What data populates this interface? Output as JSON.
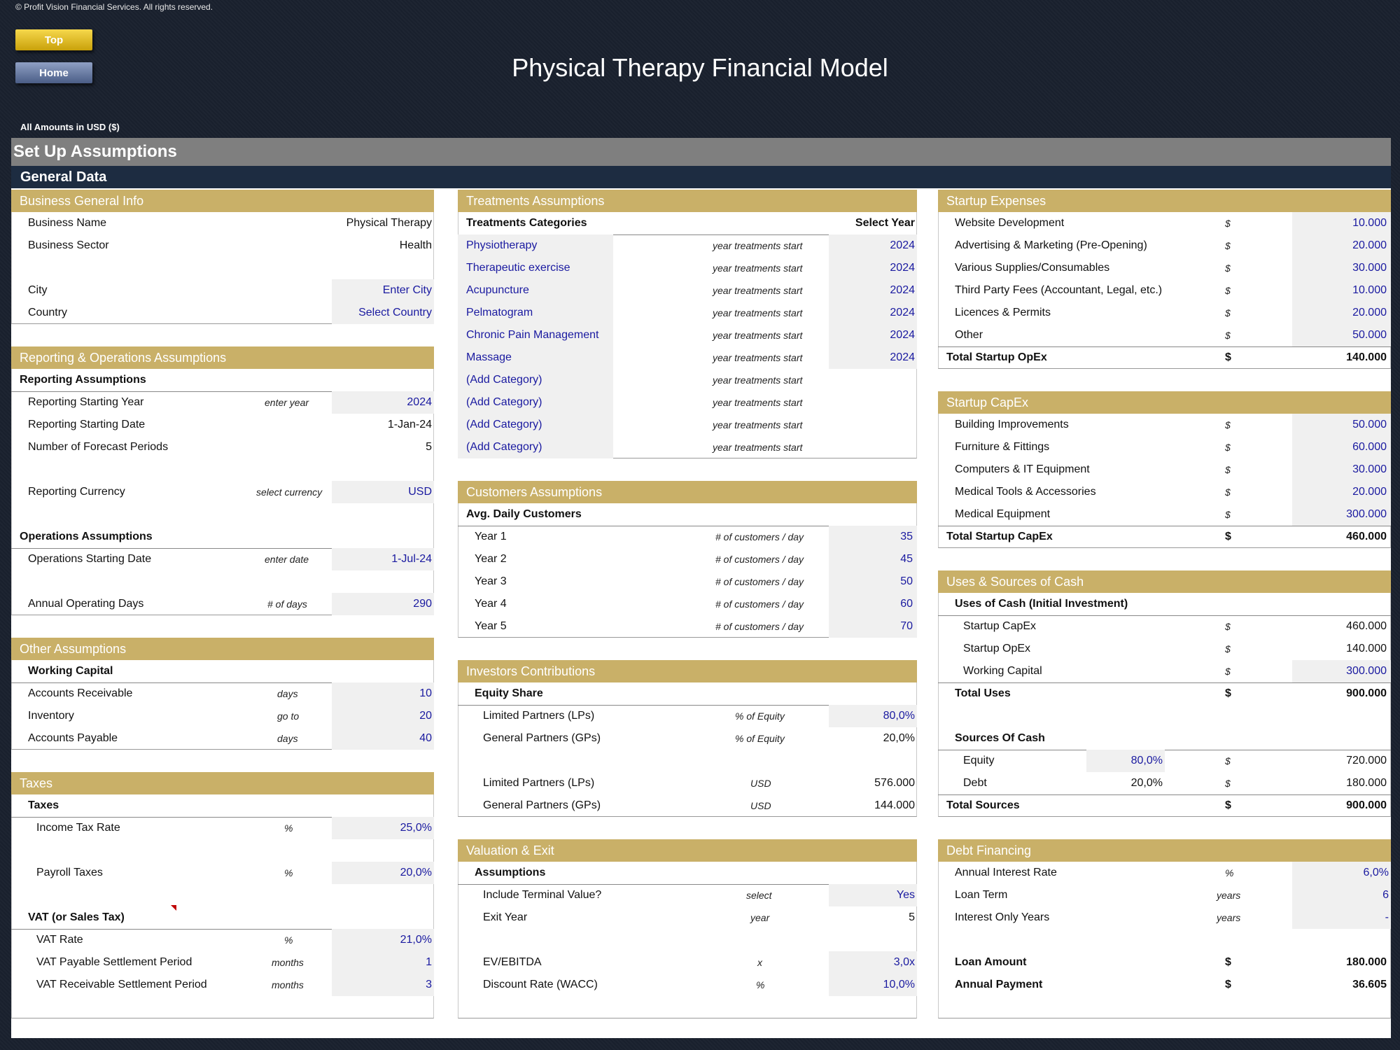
{
  "copyright": "© Profit Vision Financial Services. All rights reserved.",
  "nav": {
    "top": "Top",
    "home": "Home"
  },
  "title": "Physical Therapy Financial Model",
  "currency_note": "All Amounts in  USD ($)",
  "section": "Set Up Assumptions",
  "subsection": "General Data",
  "business": {
    "header": "Business General Info",
    "name_label": "Business Name",
    "name_value": "Physical Therapy",
    "sector_label": "Business Sector",
    "sector_value": "Health",
    "city_label": "City",
    "city_value": "Enter City",
    "country_label": "Country",
    "country_value": "Select Country"
  },
  "reporting": {
    "header": "Reporting & Operations Assumptions",
    "sub": "Reporting Assumptions",
    "start_year_label": "Reporting Starting Year",
    "start_year_unit": "enter year",
    "start_year_value": "2024",
    "start_date_label": "Reporting Starting Date",
    "start_date_value": "1-Jan-24",
    "periods_label": "Number of Forecast Periods",
    "periods_value": "5",
    "currency_label": "Reporting Currency",
    "currency_unit": "select currency",
    "currency_value": "USD",
    "ops_sub": "Operations Assumptions",
    "ops_date_label": "Operations Starting Date",
    "ops_date_unit": "enter date",
    "ops_date_value": "1-Jul-24",
    "days_label": "Annual Operating Days",
    "days_unit": "# of days",
    "days_value": "290"
  },
  "other": {
    "header": "Other Assumptions",
    "sub": "Working Capital",
    "ar_label": "Accounts Receivable",
    "ar_unit": "days",
    "ar_value": "10",
    "inv_label": "Inventory",
    "inv_unit": "go to",
    "inv_value": "20",
    "ap_label": "Accounts Payable",
    "ap_unit": "days",
    "ap_value": "40"
  },
  "taxes": {
    "header": "Taxes",
    "sub": "Taxes",
    "income_label": "Income Tax Rate",
    "income_unit": "%",
    "income_value": "25,0%",
    "payroll_label": "Payroll Taxes",
    "payroll_unit": "%",
    "payroll_value": "20,0%",
    "vat_sub": "VAT (or Sales Tax)",
    "vat_label": "VAT Rate",
    "vat_unit": "%",
    "vat_value": "21,0%",
    "vat_pay_label": "VAT Payable Settlement Period",
    "vat_pay_unit": "months",
    "vat_pay_value": "1",
    "vat_rec_label": "VAT Receivable Settlement Period",
    "vat_rec_unit": "months",
    "vat_rec_value": "3"
  },
  "treatments": {
    "header": "Treatments Assumptions",
    "col1": "Treatments Categories",
    "col2": "Select Year",
    "unit": "year treatments start",
    "items": [
      {
        "name": "Physiotherapy",
        "year": "2024"
      },
      {
        "name": "Therapeutic exercise",
        "year": "2024"
      },
      {
        "name": "Acupuncture",
        "year": "2024"
      },
      {
        "name": "Pelmatogram",
        "year": "2024"
      },
      {
        "name": "Chronic Pain Management",
        "year": "2024"
      },
      {
        "name": "Massage",
        "year": "2024"
      },
      {
        "name": "(Add Category)",
        "year": ""
      },
      {
        "name": "(Add Category)",
        "year": ""
      },
      {
        "name": "(Add Category)",
        "year": ""
      },
      {
        "name": "(Add Category)",
        "year": ""
      }
    ]
  },
  "customers": {
    "header": "Customers Assumptions",
    "sub": "Avg. Daily Customers",
    "unit": "# of customers / day",
    "items": [
      {
        "label": "Year 1",
        "value": "35"
      },
      {
        "label": "Year 2",
        "value": "45"
      },
      {
        "label": "Year 3",
        "value": "50"
      },
      {
        "label": "Year 4",
        "value": "60"
      },
      {
        "label": "Year 5",
        "value": "70"
      }
    ]
  },
  "investors": {
    "header": "Investors Contributions",
    "sub": "Equity Share",
    "lp_label": "Limited Partners (LPs)",
    "lp_unit": "% of Equity",
    "lp_value": "80,0%",
    "gp_label": "General Partners (GPs)",
    "gp_unit": "% of Equity",
    "gp_value": "20,0%",
    "lp_usd_label": "Limited Partners (LPs)",
    "lp_usd_unit": "USD",
    "lp_usd_value": "576.000",
    "gp_usd_label": "General Partners (GPs)",
    "gp_usd_unit": "USD",
    "gp_usd_value": "144.000"
  },
  "valuation": {
    "header": "Valuation & Exit",
    "sub": "Assumptions",
    "tv_label": "Include Terminal Value?",
    "tv_unit": "select",
    "tv_value": "Yes",
    "exit_label": "Exit Year",
    "exit_unit": "year",
    "exit_value": "5",
    "ev_label": "EV/EBITDA",
    "ev_unit": "x",
    "ev_value": "3,0x",
    "wacc_label": "Discount Rate (WACC)",
    "wacc_unit": "%",
    "wacc_value": "10,0%"
  },
  "startup_expenses": {
    "header": "Startup Expenses",
    "currency": "$",
    "items": [
      {
        "label": "Website Development",
        "value": "10.000"
      },
      {
        "label": "Advertising & Marketing (Pre-Opening)",
        "value": "20.000"
      },
      {
        "label": "Various Supplies/Consumables",
        "value": "30.000"
      },
      {
        "label": "Third Party Fees (Accountant, Legal, etc.)",
        "value": "10.000"
      },
      {
        "label": "Licences & Permits",
        "value": "20.000"
      },
      {
        "label": "Other",
        "value": "50.000"
      }
    ],
    "total_label": "Total Startup OpEx",
    "total_value": "140.000"
  },
  "startup_capex": {
    "header": "Startup CapEx",
    "currency": "$",
    "items": [
      {
        "label": "Building Improvements",
        "value": "50.000"
      },
      {
        "label": "Furniture & Fittings",
        "value": "60.000"
      },
      {
        "label": "Computers & IT Equipment",
        "value": "30.000"
      },
      {
        "label": "Medical Tools & Accessories",
        "value": "20.000"
      },
      {
        "label": "Medical Equipment",
        "value": "300.000"
      }
    ],
    "total_label": "Total Startup CapEx",
    "total_value": "460.000"
  },
  "uses_sources": {
    "header": "Uses & Sources of Cash",
    "currency": "$",
    "uses_sub": "Uses of Cash (Initial Investment)",
    "capex_label": "Startup CapEx",
    "capex_value": "460.000",
    "opex_label": "Startup OpEx",
    "opex_value": "140.000",
    "wc_label": "Working Capital",
    "wc_value": "300.000",
    "total_uses_label": "Total Uses",
    "total_uses_value": "900.000",
    "sources_sub": "Sources Of Cash",
    "equity_label": "Equity",
    "equity_pct": "80,0%",
    "equity_value": "720.000",
    "debt_label": "Debt",
    "debt_pct": "20,0%",
    "debt_value": "180.000",
    "total_sources_label": "Total Sources",
    "total_sources_value": "900.000"
  },
  "debt": {
    "header": "Debt Financing",
    "rate_label": "Annual Interest Rate",
    "rate_unit": "%",
    "rate_value": "6,0%",
    "term_label": "Loan Term",
    "term_unit": "years",
    "term_value": "6",
    "io_label": "Interest Only Years",
    "io_unit": "years",
    "io_value": "-",
    "loan_label": "Loan Amount",
    "loan_unit": "$",
    "loan_value": "180.000",
    "payment_label": "Annual Payment",
    "payment_unit": "$",
    "payment_value": "36.605"
  }
}
